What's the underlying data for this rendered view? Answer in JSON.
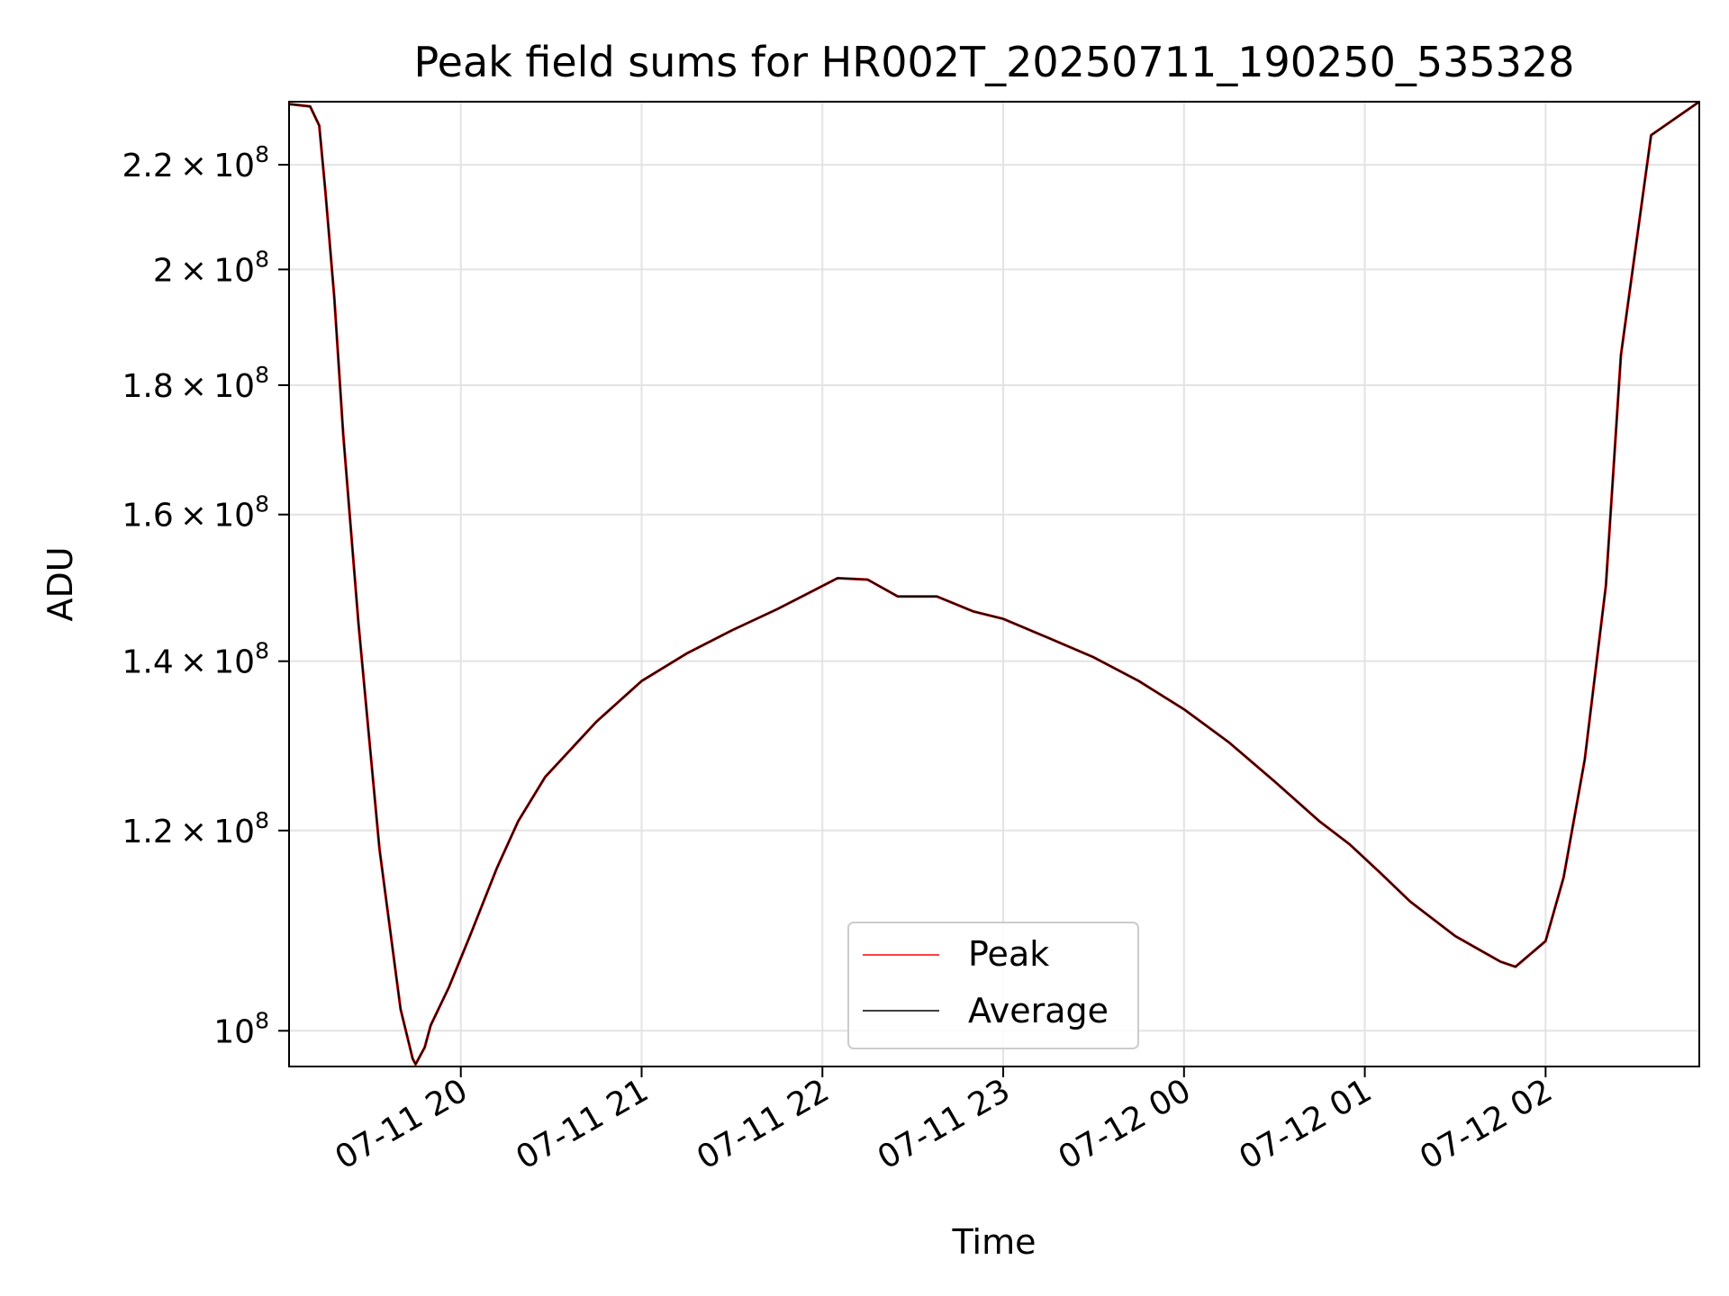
{
  "chart_data": {
    "type": "line",
    "title": "Peak field sums for HR002T_20250711_190250_535328",
    "xlabel": "Time",
    "ylabel": "ADU",
    "yscale": "log",
    "grid": true,
    "legend_position": "lower-center",
    "xlim": [
      "2025-07-11T19:03",
      "2025-07-12T02:51"
    ],
    "ylim": [
      96800000,
      233000000
    ],
    "x_ticks": [
      {
        "value": "2025-07-11T20:00",
        "label": "07-11 20"
      },
      {
        "value": "2025-07-11T21:00",
        "label": "07-11 21"
      },
      {
        "value": "2025-07-11T22:00",
        "label": "07-11 22"
      },
      {
        "value": "2025-07-11T23:00",
        "label": "07-11 23"
      },
      {
        "value": "2025-07-12T00:00",
        "label": "07-12 00"
      },
      {
        "value": "2025-07-12T01:00",
        "label": "07-12 01"
      },
      {
        "value": "2025-07-12T02:00",
        "label": "07-12 02"
      }
    ],
    "y_ticks": [
      {
        "value": 100000000,
        "mantissa": "",
        "exponent": "8"
      },
      {
        "value": 120000000,
        "mantissa": "1.2",
        "exponent": "8"
      },
      {
        "value": 140000000,
        "mantissa": "1.4",
        "exponent": "8"
      },
      {
        "value": 160000000,
        "mantissa": "1.6",
        "exponent": "8"
      },
      {
        "value": 180000000,
        "mantissa": "1.8",
        "exponent": "8"
      },
      {
        "value": 200000000,
        "mantissa": "2",
        "exponent": "8"
      },
      {
        "value": 220000000,
        "mantissa": "2.2",
        "exponent": "8"
      }
    ],
    "x": [
      "2025-07-11T19:03",
      "2025-07-11T19:10",
      "2025-07-11T19:13",
      "2025-07-11T19:15",
      "2025-07-11T19:18",
      "2025-07-11T19:21",
      "2025-07-11T19:26",
      "2025-07-11T19:33",
      "2025-07-11T19:40",
      "2025-07-11T19:44",
      "2025-07-11T19:45",
      "2025-07-11T19:48",
      "2025-07-11T19:50",
      "2025-07-11T19:56",
      "2025-07-11T20:03",
      "2025-07-11T20:12",
      "2025-07-11T20:19",
      "2025-07-11T20:28",
      "2025-07-11T20:45",
      "2025-07-11T21:00",
      "2025-07-11T21:15",
      "2025-07-11T21:30",
      "2025-07-11T21:45",
      "2025-07-11T21:58",
      "2025-07-11T22:05",
      "2025-07-11T22:15",
      "2025-07-11T22:25",
      "2025-07-11T22:38",
      "2025-07-11T22:50",
      "2025-07-11T23:00",
      "2025-07-11T23:15",
      "2025-07-11T23:30",
      "2025-07-11T23:45",
      "2025-07-12T00:00",
      "2025-07-12T00:15",
      "2025-07-12T00:30",
      "2025-07-12T00:45",
      "2025-07-12T00:55",
      "2025-07-12T01:05",
      "2025-07-12T01:15",
      "2025-07-12T01:30",
      "2025-07-12T01:45",
      "2025-07-12T01:50",
      "2025-07-12T02:00",
      "2025-07-12T02:06",
      "2025-07-12T02:13",
      "2025-07-12T02:20",
      "2025-07-12T02:25",
      "2025-07-12T02:35",
      "2025-07-12T02:51"
    ],
    "series": [
      {
        "name": "Peak",
        "color": "#ff0000",
        "values": [
          232500000,
          232000000,
          228000000,
          215000000,
          195000000,
          172000000,
          145000000,
          118000000,
          102000000,
          97500000,
          97000000,
          98500000,
          100500000,
          104000000,
          109000000,
          116000000,
          121000000,
          126000000,
          132500000,
          137500000,
          141000000,
          144000000,
          146800000,
          149500000,
          151000000,
          150800000,
          148500000,
          148500000,
          146500000,
          145500000,
          143000000,
          140500000,
          137500000,
          134000000,
          130000000,
          125500000,
          121000000,
          118500000,
          115500000,
          112500000,
          109000000,
          106500000,
          106000000,
          108500000,
          115000000,
          128000000,
          150000000,
          185000000,
          226000000,
          233000000
        ]
      },
      {
        "name": "Average",
        "color": "#000000",
        "values": [
          232500000,
          232000000,
          228000000,
          215000000,
          195000000,
          172000000,
          145000000,
          118000000,
          102000000,
          97500000,
          97000000,
          98500000,
          100500000,
          104000000,
          109000000,
          116000000,
          121000000,
          126000000,
          132500000,
          137500000,
          141000000,
          144000000,
          146800000,
          149500000,
          151000000,
          150800000,
          148500000,
          148500000,
          146500000,
          145500000,
          143000000,
          140500000,
          137500000,
          134000000,
          130000000,
          125500000,
          121000000,
          118500000,
          115500000,
          112500000,
          109000000,
          106500000,
          106000000,
          108500000,
          115000000,
          128000000,
          150000000,
          185000000,
          226000000,
          233000000
        ]
      }
    ]
  }
}
